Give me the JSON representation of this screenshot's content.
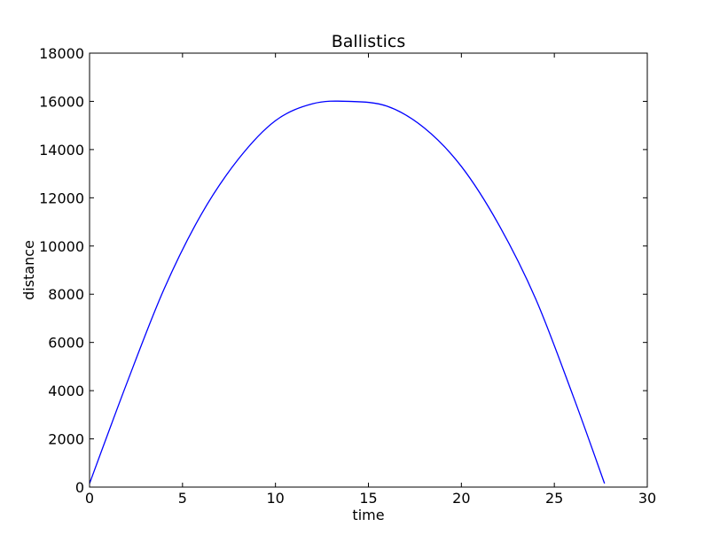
{
  "chart_data": {
    "type": "line",
    "title": "Ballistics",
    "xlabel": "time",
    "ylabel": "distance",
    "xlim": [
      0,
      30
    ],
    "ylim": [
      0,
      18000
    ],
    "xticks": [
      0,
      5,
      10,
      15,
      20,
      25,
      30
    ],
    "xtick_labels": [
      "0",
      "5",
      "10",
      "15",
      "20",
      "25",
      "30"
    ],
    "yticks": [
      0,
      2000,
      4000,
      6000,
      8000,
      10000,
      12000,
      14000,
      16000,
      18000
    ],
    "ytick_labels": [
      "0",
      "2000",
      "4000",
      "6000",
      "8000",
      "10000",
      "12000",
      "14000",
      "16000",
      "18000"
    ],
    "grid": false,
    "series": [
      {
        "color": "#0000ff",
        "x": [
          0,
          2,
          4,
          6,
          8,
          10,
          12,
          13.9,
          16,
          18,
          20,
          22,
          24,
          26,
          27.7
        ],
        "y": [
          150,
          4300,
          8200,
          11300,
          13600,
          15200,
          15900,
          16000,
          15800,
          14900,
          13300,
          10900,
          7800,
          3800,
          150
        ]
      }
    ]
  }
}
